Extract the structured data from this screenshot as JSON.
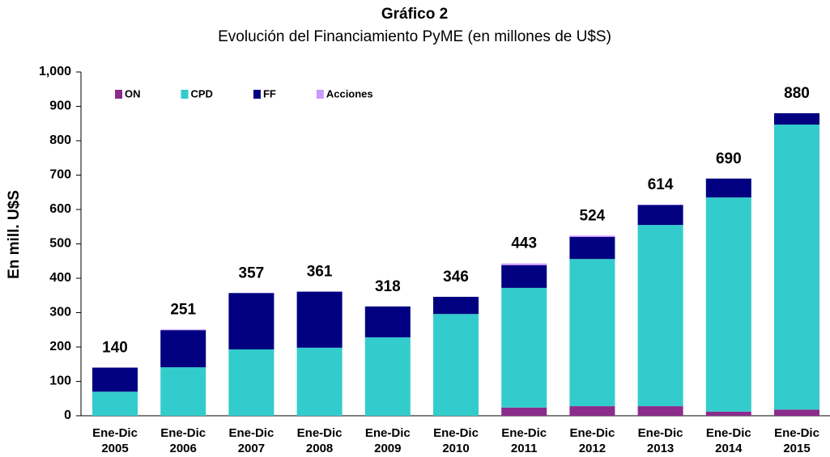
{
  "chart_data": {
    "type": "stacked_bar",
    "title": "Gráfico 2",
    "subtitle": "Evolución del Financiamiento PyME (en millones de U$S)",
    "y_label": "En mill. U$S",
    "categories": [
      "Ene-Dic\n2005",
      "Ene-Dic\n2006",
      "Ene-Dic\n2007",
      "Ene-Dic\n2008",
      "Ene-Dic\n2009",
      "Ene-Dic\n2010",
      "Ene-Dic\n2011",
      "Ene-Dic\n2012",
      "Ene-Dic\n2013",
      "Ene-Dic\n2014",
      "Ene-Dic\n2015"
    ],
    "series": [
      {
        "name": "ON",
        "color": "#8b2c8c",
        "values": [
          0,
          0,
          0,
          0,
          0,
          0,
          24,
          28,
          28,
          12,
          18
        ]
      },
      {
        "name": "CPD",
        "color": "#33cccc",
        "values": [
          70,
          141,
          193,
          198,
          228,
          296,
          348,
          428,
          527,
          623,
          829
        ]
      },
      {
        "name": "FF",
        "color": "#000080",
        "values": [
          70,
          108,
          164,
          163,
          90,
          50,
          66,
          64,
          58,
          55,
          33
        ]
      },
      {
        "name": "Acciones",
        "color": "#cc99ff",
        "values": [
          0,
          2,
          0,
          0,
          0,
          0,
          5,
          4,
          1,
          0,
          0
        ]
      }
    ],
    "totals": [
      140,
      251,
      357,
      361,
      318,
      346,
      443,
      524,
      614,
      690,
      880
    ],
    "ylim": [
      0,
      1000
    ],
    "yticks": [
      0,
      100,
      200,
      300,
      400,
      500,
      600,
      700,
      800,
      900,
      {
        "value": 1000,
        "label": "1,000"
      }
    ],
    "legend": "top-left"
  }
}
